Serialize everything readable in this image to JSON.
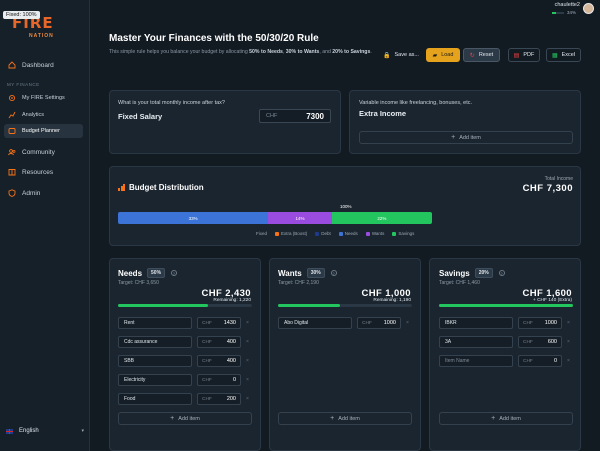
{
  "fixed_badge": "Fixed: 100%",
  "logo": {
    "word": "FIRE",
    "sub": "NATION"
  },
  "user": {
    "name": "chaulette2",
    "progress": "34%",
    "progress_value": 0.34
  },
  "sidebar": {
    "dashboard": "Dashboard",
    "section_label": "MY FINANCE",
    "items": [
      {
        "label": "My FIRE Settings",
        "icon": "gear-icon"
      },
      {
        "label": "Analytics",
        "icon": "analytics-icon"
      },
      {
        "label": "Budget Planner",
        "icon": "budget-icon"
      }
    ],
    "community": "Community",
    "resources": "Resources",
    "admin": "Admin",
    "language": "English"
  },
  "page": {
    "title": "Master Your Finances with the 50/30/20 Rule",
    "desc_pre": "This simple rule helps you balance your budget by allocating ",
    "needs_pct": "50% to Needs",
    "sep1": ", ",
    "wants_pct": "30% to Wants",
    "and": ", and ",
    "savings_pct": "20% to Savings",
    "end": "."
  },
  "toolbar": {
    "save_as": "Save as...",
    "load": "Load",
    "reset": "Reset",
    "pdf": "PDF",
    "excel": "Excel"
  },
  "income": {
    "question": "What is your total monthly income after tax?",
    "fixed_label": "Fixed Salary",
    "currency": "CHF",
    "fixed_value": "7300",
    "variable_question": "Variable income like freelancing, bonuses, etc.",
    "extra_label": "Extra Income",
    "add_item": "Add item"
  },
  "distribution": {
    "title": "Budget Distribution",
    "total_label": "Total Income",
    "total_value": "CHF 7,300",
    "top_pct": "100%",
    "segments": [
      {
        "label": "33%",
        "value": 33,
        "color": "#3b74d6"
      },
      {
        "label": "14%",
        "value": 14,
        "color": "#9b4ce0"
      },
      {
        "label": "22%",
        "value": 22,
        "color": "#22c55e"
      }
    ],
    "legend": [
      {
        "label": "Fixed",
        "color": ""
      },
      {
        "label": "Extra (Boost)",
        "color": "#f97316"
      },
      {
        "label": "Debt",
        "color": "#1e3a8a"
      },
      {
        "label": "Needs",
        "color": "#3b74d6"
      },
      {
        "label": "Wants",
        "color": "#9b4ce0"
      },
      {
        "label": "Savings",
        "color": "#22c55e"
      }
    ]
  },
  "needs": {
    "title": "Needs",
    "pct": "50%",
    "target": "Target: CHF 3,650",
    "amount": "CHF 2,430",
    "remaining": "Remaining: 1,220",
    "progress": 0.67,
    "rows": [
      {
        "name": "Rent",
        "value": "1430"
      },
      {
        "name": "Cdc assurance",
        "value": "400"
      },
      {
        "name": "SBB",
        "value": "400"
      },
      {
        "name": "Electricity",
        "value": "0"
      },
      {
        "name": "Food",
        "value": "200"
      }
    ],
    "add_item": "Add item"
  },
  "wants": {
    "title": "Wants",
    "pct": "30%",
    "target": "Target: CHF 2,190",
    "amount": "CHF 1,000",
    "remaining": "Remaining: 1,190",
    "progress": 0.46,
    "rows": [
      {
        "name": "Abo Digital",
        "value": "1000"
      }
    ],
    "add_item": "Add item"
  },
  "savings": {
    "title": "Savings",
    "pct": "20%",
    "target": "Target: CHF 1,460",
    "amount": "CHF 1,600",
    "extra": "+ CHF 140 (Extra)",
    "progress": 1.0,
    "rows": [
      {
        "name": "IBKR",
        "value": "1000"
      },
      {
        "name": "3A",
        "value": "600"
      },
      {
        "name": "Item Name",
        "value": "0",
        "placeholder": true
      }
    ],
    "add_item": "Add item"
  },
  "currency": "CHF"
}
